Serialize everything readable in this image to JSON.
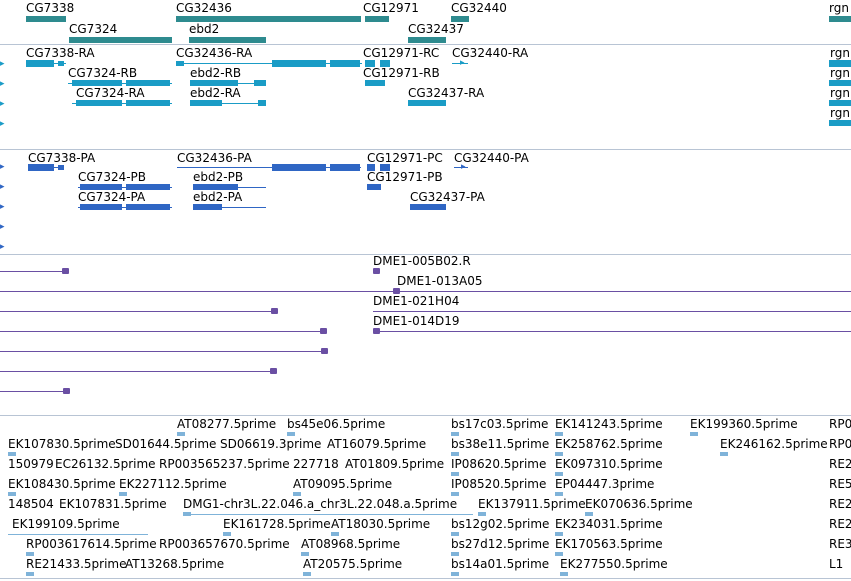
{
  "colors": {
    "gene": "#2e8b8f",
    "transcript_a": "#1a9cc6",
    "transcript_b": "#2f66c4",
    "clone": "#6a4fa3",
    "est": "#7fb3d9",
    "separator": "#b8c4d4"
  },
  "genes": [
    "CG7338",
    "CG7324",
    "CG32436",
    "ebd2",
    "CG12971",
    "CG32437",
    "CG32440",
    "rgn"
  ],
  "transcripts_a": [
    "CG7338-RA",
    "CG7324-RB",
    "CG7324-RA",
    "CG32436-RA",
    "ebd2-RB",
    "ebd2-RA",
    "CG12971-RC",
    "CG12971-RB",
    "CG32437-RA",
    "CG32440-RA",
    "rgn"
  ],
  "transcripts_b": [
    "CG7338-PA",
    "CG7324-PB",
    "CG7324-PA",
    "CG32436-PA",
    "ebd2-PB",
    "ebd2-PA",
    "CG12971-PC",
    "CG12971-PB",
    "CG32437-PA",
    "CG32440-PA"
  ],
  "clones": [
    "DME1-005B02.R",
    "DME1-013A05",
    "DME1-021H04",
    "DME1-014D19"
  ],
  "ests": [
    "AT08277.5prime",
    "bs45e06.5prime",
    "bs17c03.5prime",
    "EK141243.5prime",
    "EK199360.5prime",
    "RP0",
    "EK107830.5prime",
    "SD01644.5prime",
    "SD06619.3prime",
    "AT16079.5prime",
    "bs38e11.5prime",
    "EK258762.5prime",
    "EK246162.5prime",
    "RP0",
    "150979",
    "EC26132.5prime",
    "RP003565237.5prime",
    "227718",
    "AT01809.5prime",
    "IP08620.5prime",
    "EK097310.5prime",
    "RE2",
    "EK108430.5prime",
    "EK227112.5prime",
    "AT09095.5prime",
    "IP08520.5prime",
    "EP04447.3prime",
    "RE5",
    "148504",
    "EK107831.5prime",
    "DMG1-chr3L.22.046.a_chr3L.22.048.a.5prime",
    "EK137911.5prime",
    "EK070636.5prime",
    "RE2",
    "EK199109.5prime",
    "EK161728.5prime",
    "AT18030.5prime",
    "bs12g02.5prime",
    "EK234031.5prime",
    "RE2",
    "RP003617614.5prime",
    "RP003657670.5prime",
    "AT08968.5prime",
    "bs27d12.5prime",
    "EK170563.5prime",
    "RE3",
    "RE21433.5prime",
    "AT13268.5prime",
    "AT20575.5prime",
    "bs14a01.5prime",
    "EK277550.5prime",
    "L1"
  ]
}
